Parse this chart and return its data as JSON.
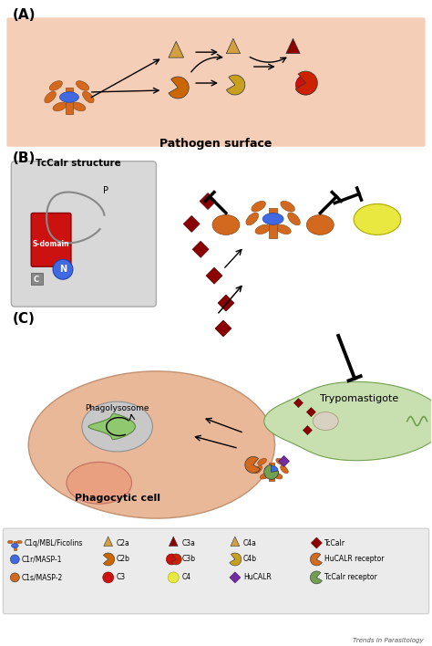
{
  "background_color": "#ffffff",
  "panel_A_label": "(A)",
  "panel_B_label": "(B)",
  "panel_C_label": "(C)",
  "pathogen_surface_label": "Pathogen surface",
  "pathogen_surface_bg": "#f5ceb8",
  "tccalr_structure_label": "TcCalr structure",
  "s_domain_label": "S-domain",
  "p_label": "P",
  "n_label": "N",
  "c_label": "C",
  "phagolysosome_label": "Phagolysosome",
  "phagocytic_cell_label": "Phagocytic cell",
  "trypomastigote_label": "Trypomastigote",
  "trends_label": "Trends in Parasitology",
  "legend_bg": "#ebebeb",
  "colors": {
    "c1q_body": "#d2691e",
    "c1r_blue": "#4169e1",
    "c2a_tan": "#d2a040",
    "c2b_orange": "#cc6600",
    "c3_red": "#cc1111",
    "c3a_dark": "#8b0000",
    "c3b_red": "#cc2200",
    "c4_yellow": "#e8e840",
    "c4a_tan": "#d2a040",
    "c4b_tan": "#c8a020",
    "hucalr_purple": "#7030a0",
    "tccalr_red": "#8b0000",
    "hucalr_receptor_orange": "#d2691e",
    "tccalr_receptor_green": "#70a050",
    "phagocytic_cell_fill": "#e8b898",
    "phagolysosome_fill": "#c8c8c8",
    "trypomastigote_fill": "#c8e0b0"
  }
}
